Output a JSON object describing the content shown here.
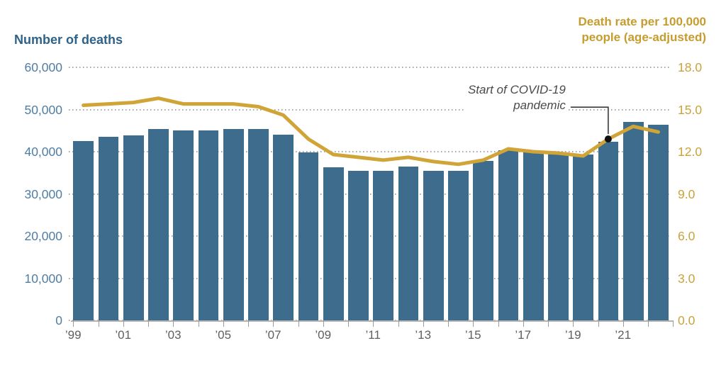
{
  "page": {
    "background": "#ffffff"
  },
  "header": {
    "left_axis_title": "Number of deaths",
    "right_axis_title_lines": [
      "Death rate per 100,000",
      "people (age-adjusted)"
    ]
  },
  "colors": {
    "bar": "#3e6c8c",
    "line": "#d1a437",
    "left_axis_text": "#4e7da6",
    "left_title_text": "#2e6288",
    "right_axis_text": "#c9a339",
    "x_axis_text": "#5f5f5f",
    "annotation_text": "#4a4a4a",
    "annotation_dot": "#111111",
    "gridline": "#a6a6a6"
  },
  "chart_data": {
    "type": "bar+line combo",
    "title": "",
    "x_years": [
      1999,
      2000,
      2001,
      2002,
      2003,
      2004,
      2005,
      2006,
      2007,
      2008,
      2009,
      2010,
      2011,
      2012,
      2013,
      2014,
      2015,
      2016,
      2017,
      2018,
      2019,
      2020,
      2021,
      2022
    ],
    "x_tick_labels_shown": [
      "’99",
      "’01",
      "’03",
      "’05",
      "’07",
      "’09",
      "’11",
      "’13",
      "’15",
      "’17",
      "’19",
      "’21"
    ],
    "series": [
      {
        "name": "Number of deaths",
        "type": "bar",
        "axis": "left",
        "color": "#3e6c8c",
        "values": [
          42500,
          43500,
          43900,
          45400,
          45000,
          45000,
          45400,
          45400,
          44000,
          39800,
          36300,
          35500,
          35400,
          36500,
          35400,
          35400,
          37900,
          40400,
          40100,
          39800,
          39300,
          42300,
          47000,
          46400
        ]
      },
      {
        "name": "Death rate per 100,000 people (age-adjusted)",
        "type": "line",
        "axis": "right",
        "color": "#d1a437",
        "values": [
          15.3,
          15.4,
          15.5,
          15.8,
          15.4,
          15.4,
          15.4,
          15.2,
          14.6,
          12.9,
          11.8,
          11.6,
          11.4,
          11.6,
          11.3,
          11.1,
          11.4,
          12.2,
          12.0,
          11.9,
          11.7,
          12.9,
          13.8,
          13.4
        ]
      }
    ],
    "left_axis": {
      "title": "Number of deaths",
      "tick_labels": [
        "60,000",
        "50,000",
        "40,000",
        "30,000",
        "20,000",
        "10,000",
        "0"
      ],
      "range": [
        0,
        60000
      ]
    },
    "right_axis": {
      "title": "Death rate per 100,000 people (age-adjusted)",
      "tick_labels": [
        "18.0",
        "15.0",
        "12.0",
        "9.0",
        "6.0",
        "3.0",
        "0.0"
      ],
      "range": [
        0,
        18
      ]
    },
    "annotation": {
      "text": "Start of COVID-19 pandemic",
      "lines": [
        "Start of COVID-19",
        "pandemic"
      ],
      "target_year": 2020,
      "target_value": 12.9
    },
    "gridlines": "horizontal dotted",
    "legend_position": "none"
  }
}
